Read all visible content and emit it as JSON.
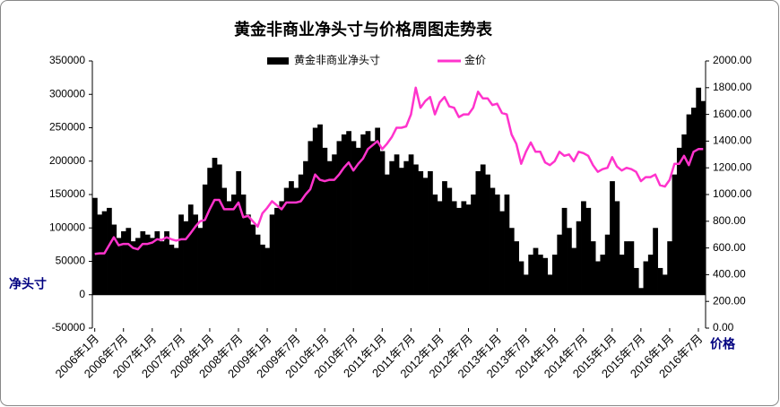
{
  "chart_data": {
    "type": "bar-line",
    "title": "黄金非商业净头寸与价格周图走势表",
    "y_label": "净头寸",
    "y2_label": "价格",
    "categories": [
      "2006年1月",
      null,
      null,
      null,
      null,
      null,
      "2006年7月",
      null,
      null,
      null,
      null,
      null,
      "2007年1月",
      null,
      null,
      null,
      null,
      null,
      "2007年7月",
      null,
      null,
      null,
      null,
      null,
      "2008年1月",
      null,
      null,
      null,
      null,
      null,
      "2008年7月",
      null,
      null,
      null,
      null,
      null,
      "2009年1月",
      null,
      null,
      null,
      null,
      null,
      "2009年7月",
      null,
      null,
      null,
      null,
      null,
      "2010年1月",
      null,
      null,
      null,
      null,
      null,
      "2010年7月",
      null,
      null,
      null,
      null,
      null,
      "2011年1月",
      null,
      null,
      null,
      null,
      null,
      "2011年7月",
      null,
      null,
      null,
      null,
      null,
      "2012年1月",
      null,
      null,
      null,
      null,
      null,
      "2012年7月",
      null,
      null,
      null,
      null,
      null,
      "2013年1月",
      null,
      null,
      null,
      null,
      null,
      "2013年7月",
      null,
      null,
      null,
      null,
      null,
      "2014年1月",
      null,
      null,
      null,
      null,
      null,
      "2014年7月",
      null,
      null,
      null,
      null,
      null,
      "2015年1月",
      null,
      null,
      null,
      null,
      null,
      "2015年7月",
      null,
      null,
      null,
      null,
      null,
      "2016年1月",
      null,
      null,
      null,
      null,
      null,
      "2016年7月",
      null
    ],
    "series": [
      {
        "name": "黄金非商业净头寸",
        "color": "#000000",
        "kind": "bar",
        "values": [
          145000,
          120000,
          125000,
          130000,
          105000,
          85000,
          95000,
          100000,
          80000,
          85000,
          95000,
          90000,
          85000,
          95000,
          80000,
          95000,
          75000,
          70000,
          120000,
          110000,
          135000,
          120000,
          100000,
          165000,
          190000,
          205000,
          195000,
          160000,
          140000,
          150000,
          185000,
          150000,
          120000,
          105000,
          90000,
          75000,
          70000,
          120000,
          130000,
          140000,
          160000,
          170000,
          160000,
          180000,
          200000,
          230000,
          250000,
          255000,
          220000,
          200000,
          210000,
          230000,
          240000,
          245000,
          230000,
          220000,
          240000,
          245000,
          230000,
          250000,
          215000,
          180000,
          200000,
          210000,
          190000,
          200000,
          210000,
          195000,
          185000,
          175000,
          185000,
          150000,
          140000,
          170000,
          160000,
          140000,
          130000,
          140000,
          135000,
          150000,
          185000,
          195000,
          180000,
          160000,
          150000,
          125000,
          150000,
          100000,
          80000,
          50000,
          30000,
          60000,
          70000,
          60000,
          55000,
          30000,
          60000,
          90000,
          130000,
          100000,
          70000,
          110000,
          140000,
          130000,
          80000,
          50000,
          60000,
          90000,
          170000,
          140000,
          60000,
          80000,
          80000,
          40000,
          10000,
          50000,
          60000,
          100000,
          40000,
          30000,
          80000,
          180000,
          220000,
          240000,
          270000,
          280000,
          310000,
          290000
        ]
      },
      {
        "name": "金价",
        "color": "#ff33cc",
        "kind": "line",
        "axis": "y2",
        "values": [
          555,
          560,
          560,
          620,
          680,
          620,
          630,
          630,
          600,
          590,
          630,
          630,
          640,
          665,
          660,
          680,
          665,
          655,
          665,
          665,
          710,
          760,
          800,
          810,
          890,
          960,
          960,
          890,
          890,
          890,
          940,
          830,
          840,
          800,
          760,
          860,
          900,
          950,
          920,
          890,
          940,
          940,
          940,
          950,
          1000,
          1040,
          1150,
          1110,
          1100,
          1110,
          1110,
          1150,
          1200,
          1240,
          1180,
          1230,
          1270,
          1340,
          1370,
          1400,
          1340,
          1380,
          1430,
          1500,
          1500,
          1510,
          1600,
          1800,
          1650,
          1700,
          1730,
          1600,
          1690,
          1730,
          1660,
          1650,
          1580,
          1600,
          1600,
          1650,
          1770,
          1720,
          1720,
          1670,
          1680,
          1610,
          1600,
          1450,
          1380,
          1230,
          1320,
          1390,
          1320,
          1320,
          1240,
          1220,
          1250,
          1320,
          1290,
          1300,
          1250,
          1320,
          1310,
          1290,
          1220,
          1170,
          1190,
          1200,
          1280,
          1210,
          1180,
          1200,
          1190,
          1170,
          1100,
          1130,
          1130,
          1150,
          1070,
          1060,
          1110,
          1230,
          1230,
          1290,
          1220,
          1320,
          1340,
          1340
        ]
      }
    ],
    "ylim": [
      -50000,
      350000
    ],
    "yticks": [
      -50000,
      0,
      50000,
      100000,
      150000,
      200000,
      250000,
      300000,
      350000
    ],
    "y2lim": [
      0,
      2000
    ],
    "y2ticks": [
      {
        "value": 0,
        "label": "0.00"
      },
      {
        "value": 200,
        "label": "200.00"
      },
      {
        "value": 400,
        "label": "400.00"
      },
      {
        "value": 600,
        "label": "600.00"
      },
      {
        "value": 800,
        "label": "800.00"
      },
      {
        "value": 1000,
        "label": "1000.00"
      },
      {
        "value": 1200,
        "label": "1200.00"
      },
      {
        "value": 1400,
        "label": "1400.00"
      },
      {
        "value": 1600,
        "label": "1600.00"
      },
      {
        "value": 1800,
        "label": "1800.00"
      },
      {
        "value": 2000,
        "label": "2000.00"
      }
    ],
    "legend": "top"
  }
}
